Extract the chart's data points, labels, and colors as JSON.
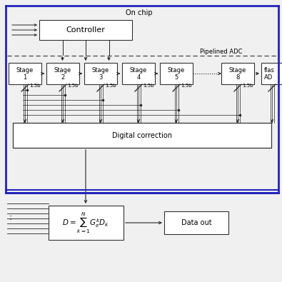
{
  "bg_color": "#f0f0f0",
  "on_chip_label": "On chip",
  "pipelined_adc_label": "Pipelined ADC",
  "controller_label": "Controller",
  "stages": [
    "Stage\n1",
    "Stage\n2",
    "Stage\n3",
    "Stage\n4",
    "Stage\n5",
    "Stage\n8"
  ],
  "flash_label_top": "flas",
  "flash_label_bot": "AD",
  "bit_label": "1.5b",
  "digital_correction_label": "Digital correction",
  "formula_label": "$D=\\sum_{k=1}^{N}G_e^k D_k$",
  "data_out_label": "Data out",
  "line_color": "#222222",
  "blue_line_color": "#2222bb",
  "dashed_line_color": "#444444",
  "font_size": 7,
  "small_font_size": 6
}
